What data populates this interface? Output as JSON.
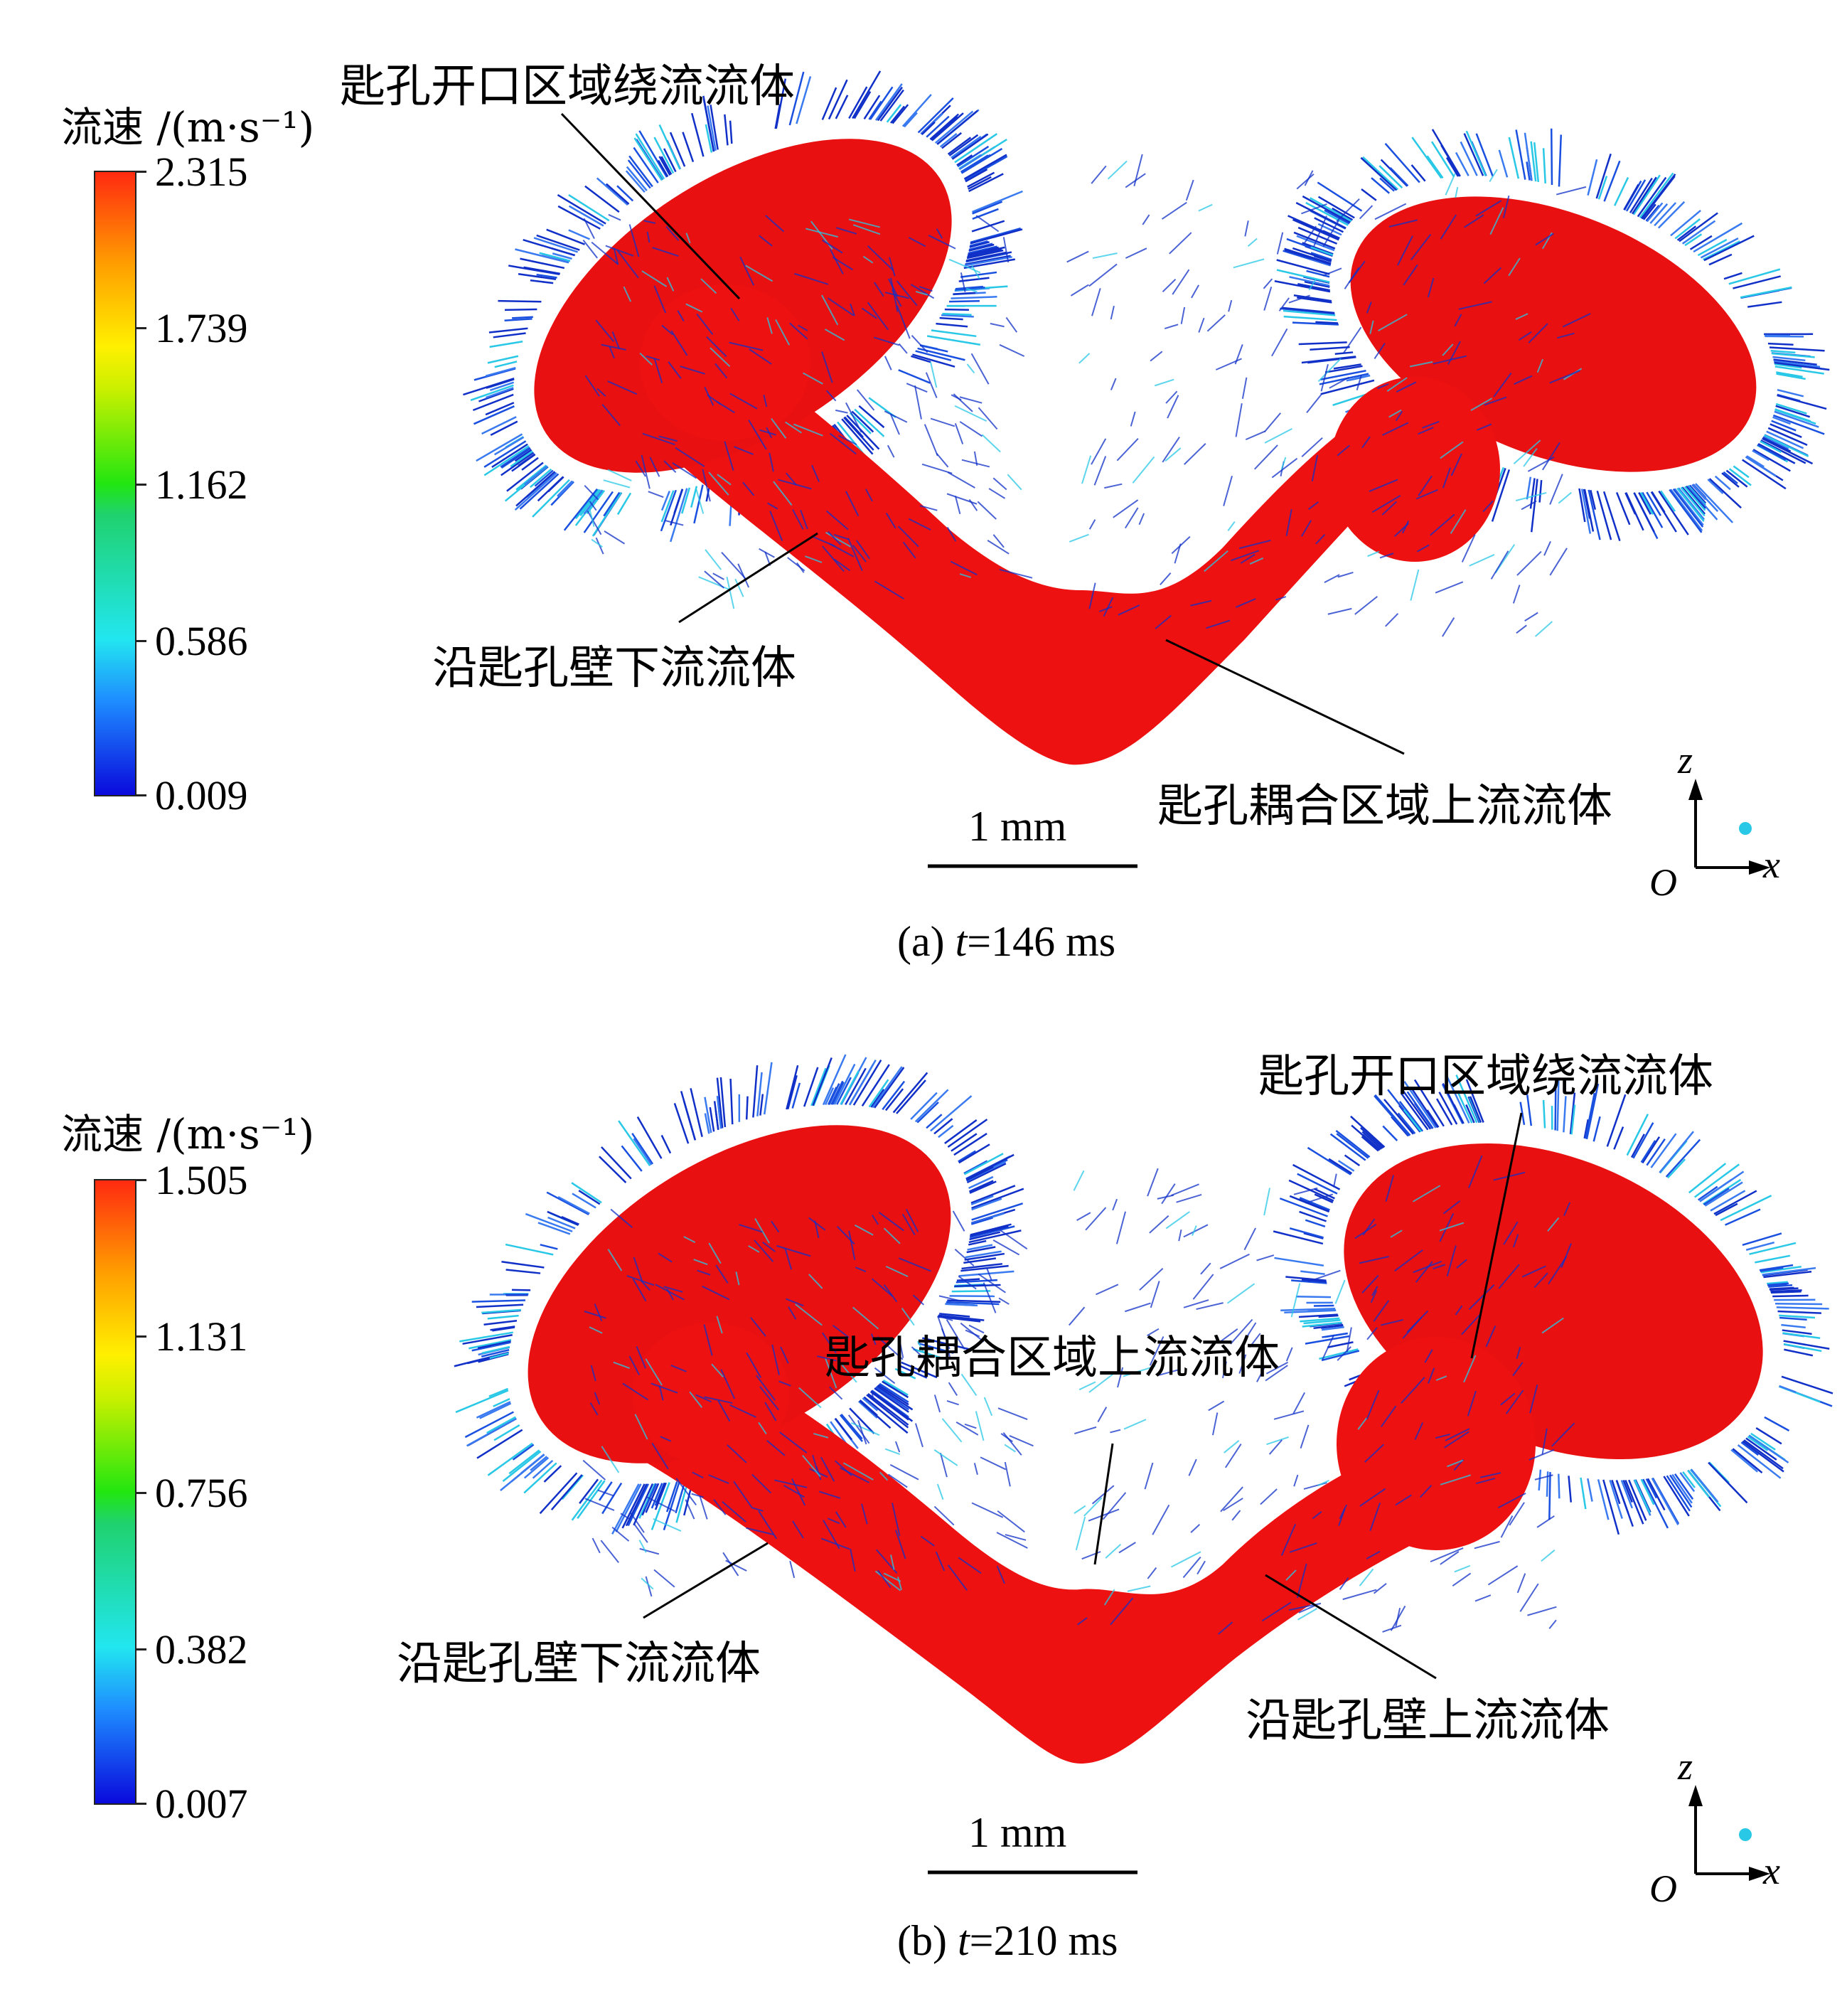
{
  "panels": [
    {
      "legend_title": "流速 /(m·s⁻¹)",
      "ticks": [
        "2.315",
        "1.739",
        "1.162",
        "0.586",
        "0.009"
      ],
      "annotations": [
        "匙孔开口区域绕流流体",
        "沿匙孔壁下流流体",
        "匙孔耦合区域上流流体"
      ],
      "scale_bar": "1 mm",
      "axes": {
        "z": "z",
        "x": "x",
        "origin": "O"
      },
      "caption_prefix": "(a) ",
      "caption_var": "t",
      "caption_rest": "=146 ms"
    },
    {
      "legend_title": "流速 /(m·s⁻¹)",
      "ticks": [
        "1.505",
        "1.131",
        "0.756",
        "0.382",
        "0.007"
      ],
      "annotations": [
        "匙孔开口区域绕流流体",
        "匙孔耦合区域上流流体",
        "沿匙孔壁下流流体",
        "沿匙孔壁上流流体"
      ],
      "scale_bar": "1 mm",
      "axes": {
        "z": "z",
        "x": "x",
        "origin": "O"
      },
      "caption_prefix": "(b) ",
      "caption_var": "t",
      "caption_rest": "=210 ms"
    }
  ],
  "colors": {
    "keyhole_body": "#ee1111",
    "vector_low": "#1030c8",
    "vector_mid": "#28c8e6"
  }
}
